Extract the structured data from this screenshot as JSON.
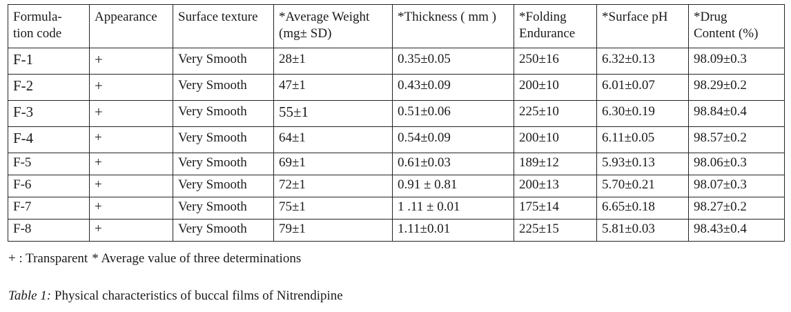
{
  "table": {
    "headers": [
      [
        "Formula-",
        "tion code"
      ],
      [
        "Appearance"
      ],
      [
        "Surface texture"
      ],
      [
        "*Average Weight",
        "(mg± SD)"
      ],
      [
        "*Thickness ( mm )"
      ],
      [
        "*Folding",
        "Endurance"
      ],
      [
        "*Surface pH"
      ],
      [
        "*Drug",
        "Content (%)"
      ]
    ],
    "rows": [
      [
        "F-1",
        "+",
        "Very Smooth",
        "28±1",
        "0.35±0.05",
        "250±16",
        "6.32±0.13",
        "98.09±0.3"
      ],
      [
        "F-2",
        "+",
        "Very Smooth",
        "47±1",
        "0.43±0.09",
        "200±10",
        "6.01±0.07",
        "98.29±0.2"
      ],
      [
        "F-3",
        "+",
        "Very Smooth",
        "55±1",
        "0.51±0.06",
        "225±10",
        "6.30±0.19",
        "98.84±0.4"
      ],
      [
        "F-4",
        "+",
        "Very Smooth",
        "64±1",
        "0.54±0.09",
        "200±10",
        "6.11±0.05",
        "98.57±0.2"
      ],
      [
        "F-5",
        "+",
        "Very Smooth",
        "69±1",
        "0.61±0.03",
        "189±12",
        "5.93±0.13",
        "98.06±0.3"
      ],
      [
        "F-6",
        "+",
        "Very Smooth",
        "72±1",
        "0.91 ± 0.81",
        "200±13",
        "5.70±0.21",
        "98.07±0.3"
      ],
      [
        "F-7",
        "+",
        "Very Smooth",
        "75±1",
        "1 .11 ± 0.01",
        "175±14",
        "6.65±0.18",
        "98.27±0.2"
      ],
      [
        "F-8",
        "+",
        "Very Smooth",
        "79±1",
        "1.11±0.01",
        "225±15",
        "5.81±0.03",
        "98.43±0.4"
      ]
    ]
  },
  "footnote": {
    "transparent": "+ : Transparent",
    "average": "* Average value of three determinations"
  },
  "caption": {
    "label": "Table 1:",
    "text": "Physical characteristics of buccal films of Nitrendipine"
  }
}
